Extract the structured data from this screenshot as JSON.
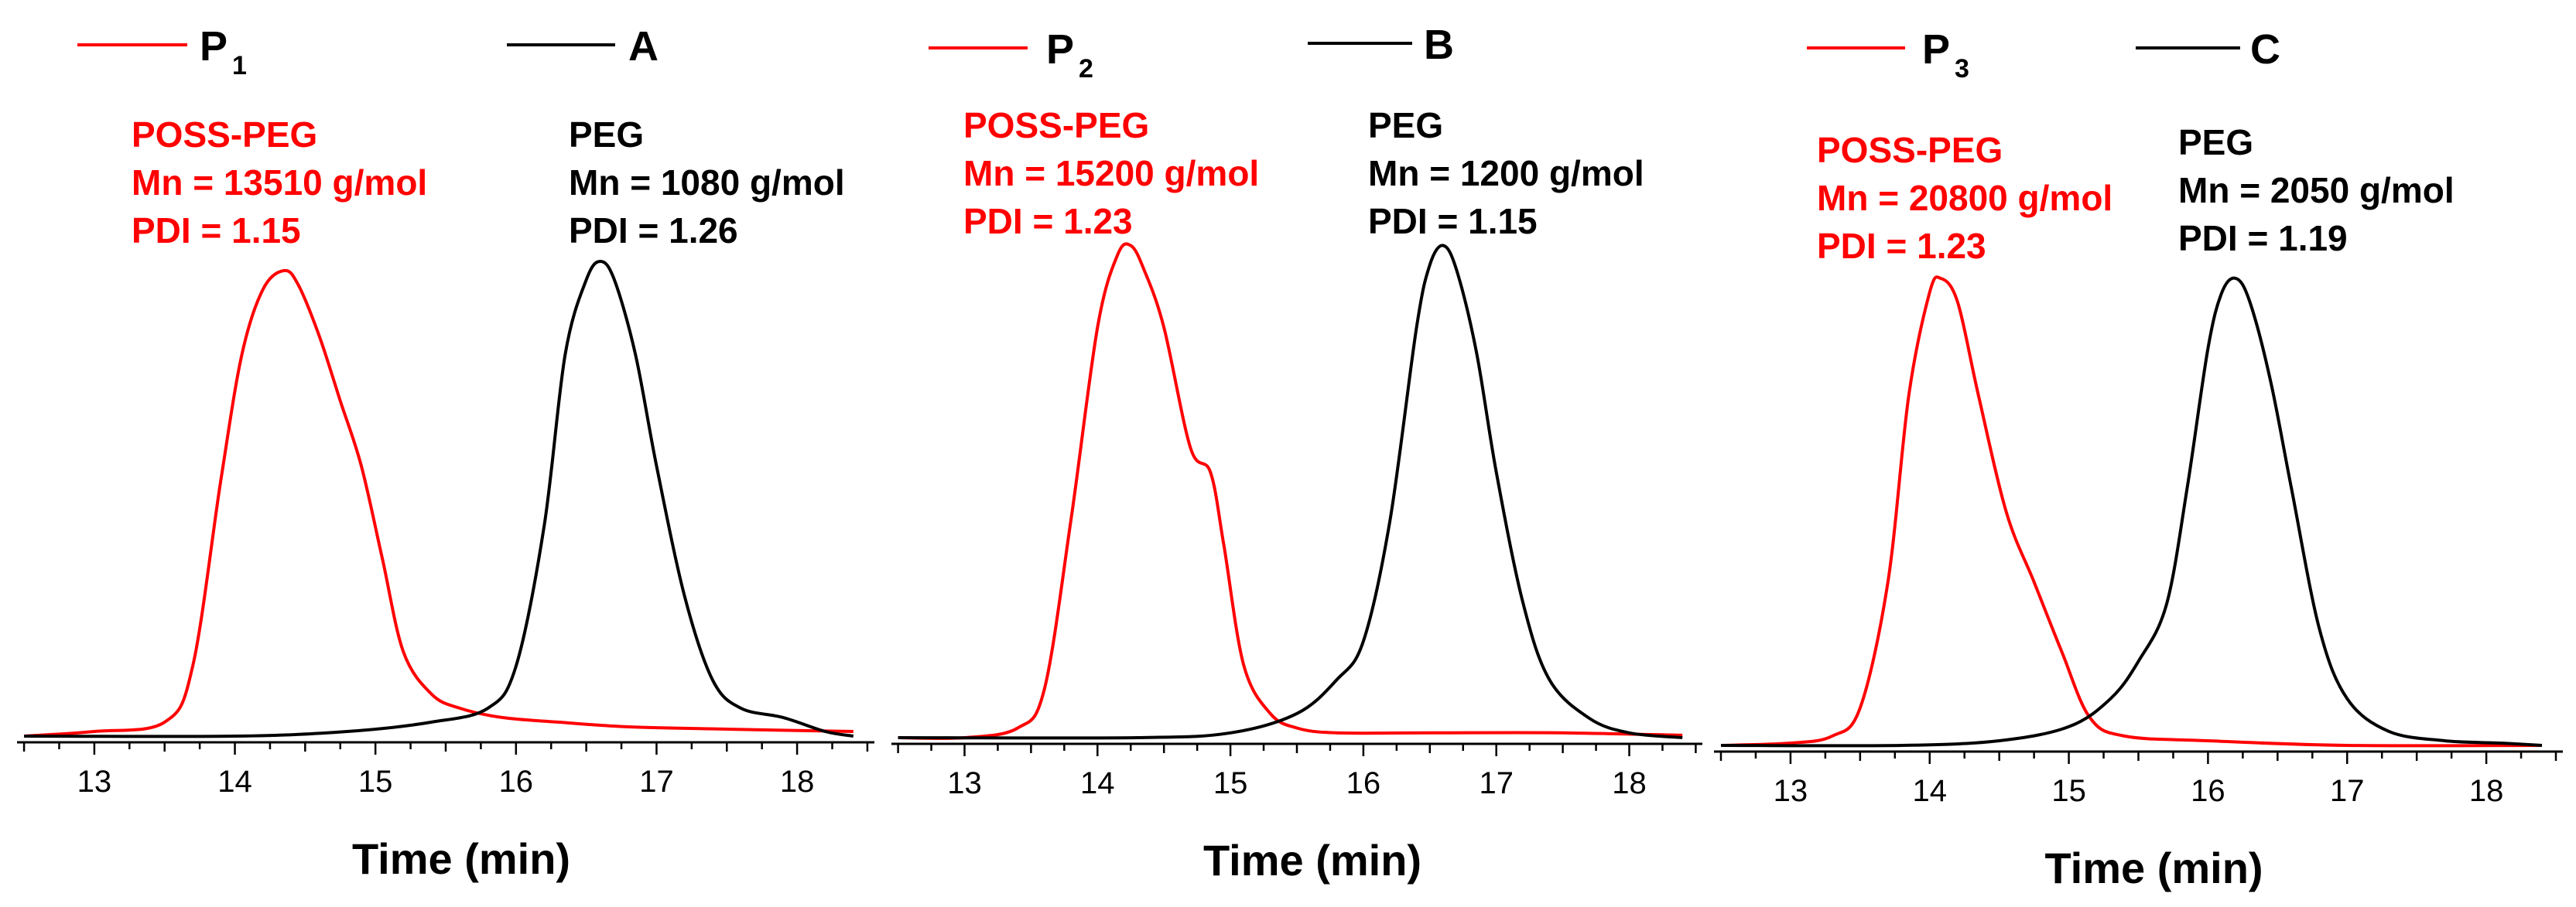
{
  "chart_data": [
    {
      "type": "line",
      "panel": "A",
      "xlabel": "Time (min)",
      "ylabel": "",
      "xlim": [
        12.45,
        18.55
      ],
      "ylim": [
        -0.02,
        1.08
      ],
      "xticks": [
        "13",
        "14",
        "15",
        "16",
        "17",
        "18"
      ],
      "legend": [
        {
          "label": "P",
          "sub": "1",
          "color": "#ff0000"
        },
        {
          "label": "A",
          "sub": "",
          "color": "#000000"
        }
      ],
      "annotations": [
        {
          "lines": [
            "POSS-PEG",
            "Mn = 13510 g/mol",
            "PDI = 1.15"
          ],
          "color": "#ff0000"
        },
        {
          "lines": [
            "PEG",
            "Mn = 1080 g/mol",
            "PDI = 1.26"
          ],
          "color": "#000000"
        }
      ],
      "series": [
        {
          "name": "POSS-PEG (P1)",
          "color": "#ff0000",
          "x": [
            12.5,
            13.0,
            13.5,
            13.7,
            13.9,
            14.05,
            14.2,
            14.35,
            14.45,
            14.6,
            14.75,
            14.9,
            15.05,
            15.2,
            15.4,
            15.6,
            15.9,
            16.3,
            16.8,
            17.5,
            18.4
          ],
          "y": [
            0.0,
            0.01,
            0.03,
            0.15,
            0.55,
            0.82,
            0.96,
            1.0,
            0.97,
            0.86,
            0.72,
            0.58,
            0.38,
            0.18,
            0.09,
            0.06,
            0.04,
            0.03,
            0.02,
            0.015,
            0.01
          ]
        },
        {
          "name": "PEG (A)",
          "color": "#000000",
          "x": [
            12.5,
            14.0,
            14.8,
            15.4,
            15.8,
            16.0,
            16.2,
            16.35,
            16.5,
            16.6,
            16.7,
            16.85,
            17.0,
            17.2,
            17.4,
            17.6,
            17.9,
            18.2,
            18.4
          ],
          "y": [
            0.0,
            0.0,
            0.01,
            0.03,
            0.06,
            0.15,
            0.45,
            0.82,
            0.98,
            1.02,
            0.98,
            0.82,
            0.58,
            0.3,
            0.12,
            0.06,
            0.04,
            0.01,
            0.0
          ]
        }
      ]
    },
    {
      "type": "line",
      "panel": "B",
      "xlabel": "Time (min)",
      "ylabel": "",
      "xlim": [
        12.45,
        18.55
      ],
      "ylim": [
        -0.02,
        1.08
      ],
      "xticks": [
        "13",
        "14",
        "15",
        "16",
        "17",
        "18"
      ],
      "legend": [
        {
          "label": "P",
          "sub": "2",
          "color": "#ff0000"
        },
        {
          "label": "B",
          "sub": "",
          "color": "#000000"
        }
      ],
      "annotations": [
        {
          "lines": [
            "POSS-PEG",
            "Mn = 15200 g/mol",
            "PDI = 1.23"
          ],
          "color": "#ff0000"
        },
        {
          "lines": [
            "PEG",
            "Mn = 1200 g/mol",
            "PDI = 1.15"
          ],
          "color": "#000000"
        }
      ],
      "series": [
        {
          "name": "POSS-PEG (P2)",
          "color": "#ff0000",
          "x": [
            12.5,
            13.0,
            13.4,
            13.6,
            13.8,
            14.0,
            14.15,
            14.25,
            14.35,
            14.5,
            14.7,
            14.85,
            14.95,
            15.1,
            15.3,
            15.5,
            15.8,
            16.5,
            17.5,
            18.4
          ],
          "y": [
            0.0,
            0.0,
            0.02,
            0.1,
            0.45,
            0.85,
            1.0,
            1.02,
            0.97,
            0.85,
            0.6,
            0.55,
            0.4,
            0.15,
            0.05,
            0.02,
            0.01,
            0.01,
            0.01,
            0.005
          ]
        },
        {
          "name": "PEG (B)",
          "color": "#000000",
          "x": [
            12.5,
            14.3,
            15.0,
            15.5,
            15.8,
            16.0,
            16.2,
            16.4,
            16.5,
            16.6,
            16.7,
            16.85,
            17.0,
            17.2,
            17.4,
            17.7,
            18.0,
            18.4
          ],
          "y": [
            0.0,
            0.0,
            0.01,
            0.05,
            0.12,
            0.2,
            0.45,
            0.85,
            0.98,
            1.02,
            0.97,
            0.8,
            0.55,
            0.28,
            0.12,
            0.04,
            0.01,
            0.0
          ]
        }
      ]
    },
    {
      "type": "line",
      "panel": "C",
      "xlabel": "Time (min)",
      "ylabel": "",
      "xlim": [
        12.45,
        18.55
      ],
      "ylim": [
        -0.02,
        1.08
      ],
      "xticks": [
        "13",
        "14",
        "15",
        "16",
        "17",
        "18"
      ],
      "legend": [
        {
          "label": "P",
          "sub": "3",
          "color": "#ff0000"
        },
        {
          "label": "C",
          "sub": "",
          "color": "#000000"
        }
      ],
      "annotations": [
        {
          "lines": [
            "POSS-PEG",
            "Mn = 20800 g/mol",
            "PDI = 1.23"
          ],
          "color": "#ff0000"
        },
        {
          "lines": [
            "PEG",
            "Mn = 2050 g/mol",
            "PDI = 1.19"
          ],
          "color": "#000000"
        }
      ],
      "series": [
        {
          "name": "POSS-PEG (P3)",
          "color": "#ff0000",
          "x": [
            12.5,
            13.0,
            13.3,
            13.5,
            13.7,
            13.85,
            14.0,
            14.08,
            14.2,
            14.35,
            14.55,
            14.75,
            14.95,
            15.15,
            15.4,
            16.0,
            17.0,
            18.4
          ],
          "y": [
            0.0,
            0.005,
            0.02,
            0.08,
            0.35,
            0.75,
            0.97,
            1.0,
            0.95,
            0.75,
            0.5,
            0.35,
            0.2,
            0.06,
            0.02,
            0.01,
            0.0,
            0.0
          ]
        },
        {
          "name": "PEG (C)",
          "color": "#000000",
          "x": [
            12.5,
            13.8,
            14.5,
            15.0,
            15.3,
            15.5,
            15.7,
            15.85,
            16.0,
            16.1,
            16.2,
            16.3,
            16.45,
            16.6,
            16.8,
            17.0,
            17.3,
            17.7,
            18.1,
            18.4
          ],
          "y": [
            0.0,
            0.0,
            0.01,
            0.04,
            0.1,
            0.18,
            0.3,
            0.55,
            0.85,
            0.97,
            1.0,
            0.95,
            0.78,
            0.55,
            0.25,
            0.1,
            0.03,
            0.01,
            0.005,
            0.0
          ]
        }
      ]
    }
  ]
}
